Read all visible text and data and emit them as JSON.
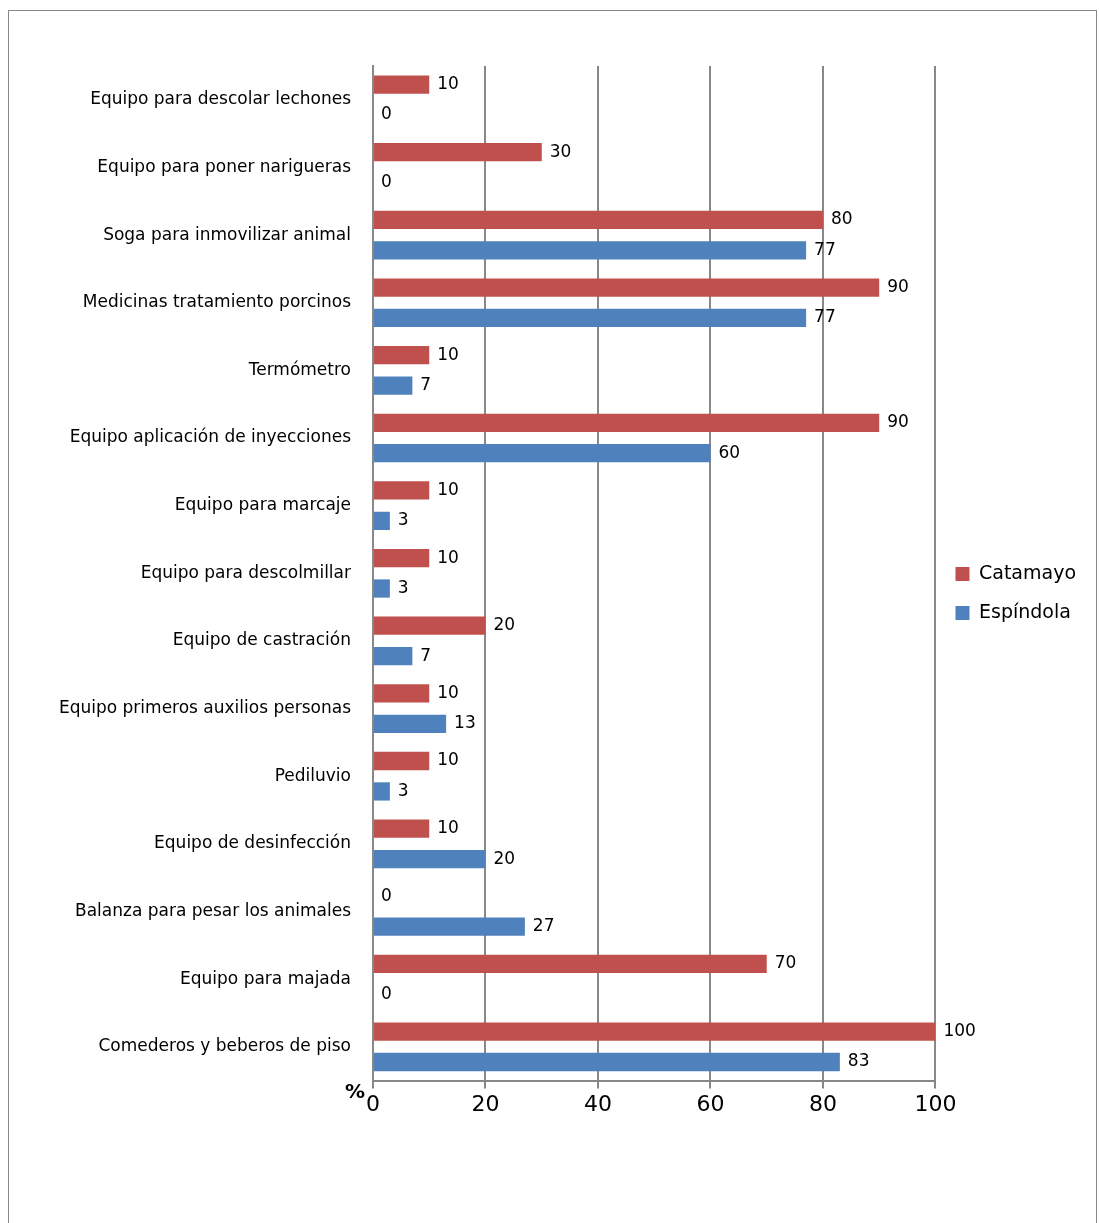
{
  "chart_data": {
    "type": "bar",
    "orientation": "horizontal",
    "xlabel": "%",
    "categories": [
      "Equipo para descolar lechones",
      "Equipo para poner narigueras",
      "Soga para inmovilizar animal",
      "Medicinas tratamiento porcinos",
      "Termómetro",
      "Equipo aplicación de inyecciones",
      "Equipo para marcaje",
      "Equipo para descolmillar",
      "Equipo de castración",
      "Equipo primeros auxilios personas",
      "Pediluvio",
      "Equipo de desinfección",
      "Balanza para pesar los animales",
      "Equipo para majada",
      "Comederos y beberos de piso"
    ],
    "series": [
      {
        "name": "Catamayo",
        "color": "#c0504d",
        "values": [
          10,
          30,
          80,
          90,
          10,
          90,
          10,
          10,
          20,
          10,
          10,
          10,
          0,
          70,
          100
        ]
      },
      {
        "name": "Espíndola",
        "color": "#4f81bd",
        "values": [
          0,
          0,
          77,
          77,
          7,
          60,
          3,
          3,
          7,
          13,
          3,
          20,
          27,
          0,
          83
        ]
      }
    ],
    "xlim": [
      0,
      100
    ],
    "xticks": [
      0,
      20,
      40,
      60,
      80,
      100
    ],
    "grid": "x",
    "legend": "right",
    "data_labels": true
  }
}
